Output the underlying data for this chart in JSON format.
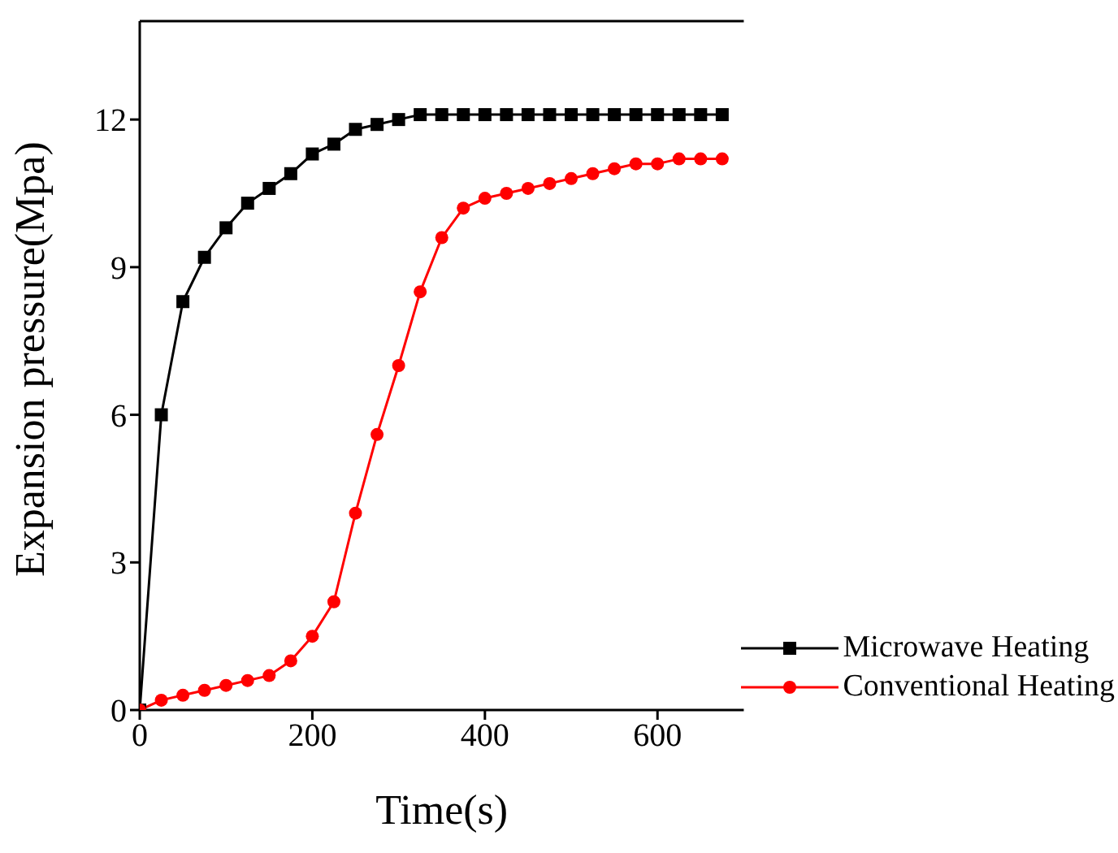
{
  "chart_data": {
    "type": "line",
    "xlabel": "Time(s)",
    "ylabel": "Expansion pressure(Mpa)",
    "x": [
      0,
      25,
      50,
      75,
      100,
      125,
      150,
      175,
      200,
      225,
      250,
      275,
      300,
      325,
      350,
      375,
      400,
      425,
      450,
      475,
      500,
      525,
      550,
      575,
      600,
      625,
      650,
      675
    ],
    "series": [
      {
        "name": "Microwave Heating",
        "color": "#000000",
        "marker": "square",
        "values": [
          0,
          6.0,
          8.3,
          9.2,
          9.8,
          10.3,
          10.6,
          10.9,
          11.3,
          11.5,
          11.8,
          11.9,
          12.0,
          12.1,
          12.1,
          12.1,
          12.1,
          12.1,
          12.1,
          12.1,
          12.1,
          12.1,
          12.1,
          12.1,
          12.1,
          12.1,
          12.1,
          12.1
        ]
      },
      {
        "name": "Conventional Heating",
        "color": "#ff0000",
        "marker": "circle",
        "values": [
          0,
          0.2,
          0.3,
          0.4,
          0.5,
          0.6,
          0.7,
          1.0,
          1.5,
          2.2,
          4.0,
          5.6,
          7.0,
          8.5,
          9.6,
          10.2,
          10.4,
          10.5,
          10.6,
          10.7,
          10.8,
          10.9,
          11.0,
          11.1,
          11.1,
          11.2,
          11.2,
          11.2
        ]
      }
    ],
    "xlim": [
      0,
      700
    ],
    "xticks": [
      0,
      200,
      400,
      600
    ],
    "ylim": [
      0,
      14
    ],
    "yticks": [
      0,
      3,
      6,
      9,
      12
    ],
    "grid": false,
    "legend": "bottom right",
    "line_style": "solid"
  }
}
